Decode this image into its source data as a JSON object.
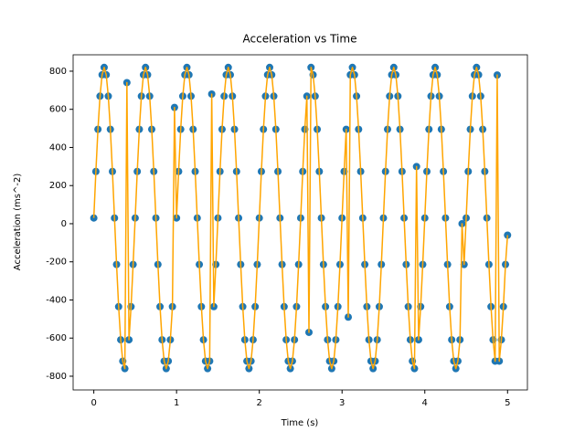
{
  "chart_data": {
    "type": "scatter-line",
    "title": "Acceleration vs Time",
    "xlabel": "Time (s)",
    "ylabel": "Acceleration (ms^-2)",
    "marker_color": "#1f77b4",
    "line_color": "#ffa500",
    "xlim": [
      -0.25,
      5.24
    ],
    "ylim": [
      -872,
      886
    ],
    "xticks": [
      0,
      1,
      2,
      3,
      4,
      5
    ],
    "yticks": [
      -800,
      -600,
      -400,
      -200,
      0,
      200,
      400,
      600,
      800
    ],
    "x": [
      0,
      0.025,
      0.05,
      0.075,
      0.1,
      0.125,
      0.15,
      0.175,
      0.2,
      0.225,
      0.25,
      0.275,
      0.3,
      0.325,
      0.35,
      0.375,
      0.4,
      0.425,
      0.45,
      0.475,
      0.5,
      0.525,
      0.55,
      0.575,
      0.6,
      0.625,
      0.65,
      0.675,
      0.7,
      0.725,
      0.75,
      0.775,
      0.8,
      0.825,
      0.85,
      0.875,
      0.9,
      0.925,
      0.95,
      0.975,
      1,
      1.025,
      1.05,
      1.075,
      1.1,
      1.125,
      1.15,
      1.175,
      1.2,
      1.225,
      1.25,
      1.275,
      1.3,
      1.325,
      1.35,
      1.375,
      1.4,
      1.425,
      1.45,
      1.475,
      1.5,
      1.525,
      1.55,
      1.575,
      1.6,
      1.625,
      1.65,
      1.675,
      1.7,
      1.725,
      1.75,
      1.775,
      1.8,
      1.825,
      1.85,
      1.875,
      1.9,
      1.925,
      1.95,
      1.975,
      2,
      2.025,
      2.05,
      2.075,
      2.1,
      2.125,
      2.15,
      2.175,
      2.2,
      2.225,
      2.25,
      2.275,
      2.3,
      2.325,
      2.35,
      2.375,
      2.4,
      2.425,
      2.45,
      2.475,
      2.5,
      2.525,
      2.55,
      2.575,
      2.6,
      2.625,
      2.65,
      2.675,
      2.7,
      2.725,
      2.75,
      2.775,
      2.8,
      2.825,
      2.85,
      2.875,
      2.9,
      2.925,
      2.95,
      2.975,
      3,
      3.025,
      3.05,
      3.075,
      3.1,
      3.125,
      3.15,
      3.175,
      3.2,
      3.225,
      3.25,
      3.275,
      3.3,
      3.325,
      3.35,
      3.375,
      3.4,
      3.425,
      3.45,
      3.475,
      3.5,
      3.525,
      3.55,
      3.575,
      3.6,
      3.625,
      3.65,
      3.675,
      3.7,
      3.725,
      3.75,
      3.775,
      3.8,
      3.825,
      3.85,
      3.875,
      3.9,
      3.925,
      3.95,
      3.975,
      4,
      4.025,
      4.05,
      4.075,
      4.1,
      4.125,
      4.15,
      4.175,
      4.2,
      4.225,
      4.25,
      4.275,
      4.3,
      4.325,
      4.35,
      4.375,
      4.4,
      4.425,
      4.45,
      4.475,
      4.5,
      4.525,
      4.55,
      4.575,
      4.6,
      4.625,
      4.65,
      4.675,
      4.7,
      4.725,
      4.75,
      4.775,
      4.8,
      4.825,
      4.85,
      4.875,
      4.9,
      4.925,
      4.95,
      4.975,
      5
    ],
    "values": [
      30,
      274,
      495,
      669,
      781,
      820,
      781,
      669,
      495,
      274,
      30,
      -214,
      -435,
      -609,
      -721,
      -760,
      740,
      -609,
      -435,
      -214,
      30,
      274,
      495,
      669,
      781,
      820,
      781,
      669,
      495,
      274,
      30,
      -214,
      -435,
      -609,
      -721,
      -760,
      -721,
      -609,
      -435,
      610,
      30,
      274,
      495,
      669,
      781,
      820,
      781,
      669,
      495,
      274,
      30,
      -214,
      -435,
      -609,
      -721,
      -760,
      -721,
      680,
      -435,
      -214,
      30,
      274,
      495,
      669,
      781,
      820,
      781,
      669,
      495,
      274,
      30,
      -214,
      -435,
      -609,
      -721,
      -760,
      -721,
      -609,
      -435,
      -214,
      30,
      274,
      495,
      669,
      781,
      820,
      781,
      669,
      495,
      274,
      30,
      -214,
      -435,
      -609,
      -721,
      -760,
      -721,
      -609,
      -435,
      -214,
      30,
      274,
      495,
      669,
      -570,
      820,
      781,
      669,
      495,
      274,
      30,
      -214,
      -435,
      -609,
      -721,
      -760,
      -721,
      -609,
      -435,
      -214,
      30,
      274,
      495,
      -490,
      781,
      820,
      781,
      669,
      495,
      274,
      30,
      -214,
      -435,
      -609,
      -721,
      -760,
      -721,
      -609,
      -435,
      -214,
      30,
      274,
      495,
      669,
      781,
      820,
      781,
      669,
      495,
      274,
      30,
      -214,
      -435,
      -609,
      -721,
      -760,
      300,
      -609,
      -435,
      -214,
      30,
      274,
      495,
      669,
      781,
      820,
      781,
      669,
      495,
      274,
      30,
      -214,
      -435,
      -609,
      -721,
      -760,
      -721,
      -609,
      0,
      -214,
      30,
      274,
      495,
      669,
      781,
      820,
      781,
      669,
      495,
      274,
      30,
      -214,
      -435,
      -609,
      -721,
      780,
      -721,
      -609,
      -435,
      -214,
      -60
    ]
  }
}
